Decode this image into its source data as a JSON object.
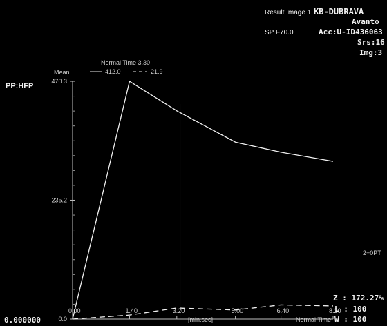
{
  "overlay": {
    "result_label": "Result Image 1",
    "sp_label": "SP F70.0",
    "institution": "KB-DUBRAVA",
    "device": "Avanto",
    "accession": "Acc:U-ID436063",
    "series": "Srs:16",
    "image": "Img:3",
    "sequence": "PP:HFP",
    "mean_label": "Mean",
    "side_label": "2+0PT",
    "position_value": "0.000000",
    "zoom": "Z : 172.27%",
    "level": "L : 100",
    "window": "W : 100",
    "x_axis_label": "[min.sec]",
    "x_axis_label_right": "Normal Time",
    "legend": {
      "cursor_label": "Normal Time 3.30",
      "series1_value": "412.0",
      "series2_value": "21.9"
    }
  },
  "chart_data": {
    "type": "line",
    "xlabel": "[min.sec]",
    "ylabel": "Mean",
    "xlim": [
      0,
      8.0
    ],
    "ylim": [
      0,
      470.3
    ],
    "x_ticks": [
      "0.00",
      "1.40",
      "3.20",
      "5.00",
      "6.40",
      "8.20"
    ],
    "y_ticks": [
      "0.0",
      "235.2",
      "470.3"
    ],
    "cursor_x": 3.3,
    "series": [
      {
        "style": "solid",
        "x": [
          0,
          1.75,
          3.2,
          5.0,
          6.4,
          8.0
        ],
        "y": [
          0,
          470.3,
          412.0,
          350.0,
          330.0,
          312.0
        ]
      },
      {
        "style": "dashed",
        "x": [
          0,
          1.75,
          3.2,
          5.0,
          6.4,
          8.0
        ],
        "y": [
          0,
          8.0,
          21.9,
          18.0,
          28.0,
          26.0
        ]
      }
    ]
  }
}
